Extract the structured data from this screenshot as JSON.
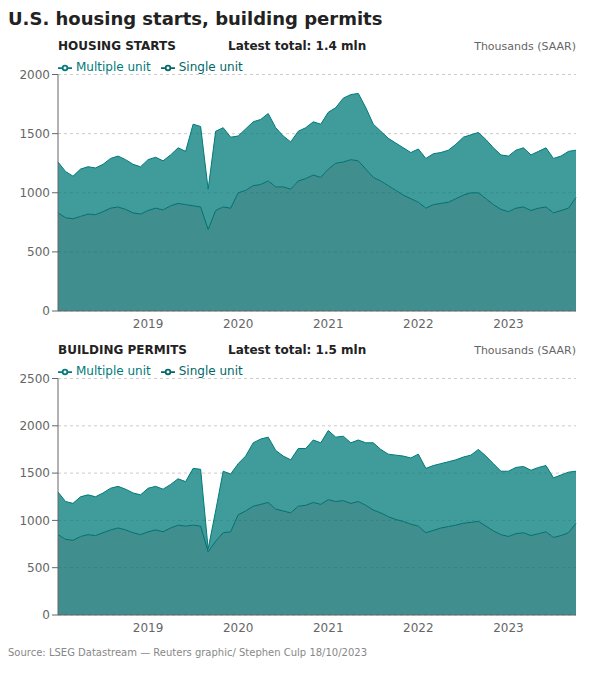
{
  "title": "U.S. housing starts, building permits",
  "annotations": [
    "Source: LSEG Datastream — Reuters graphic/ Stephen Culp  18/10/2023"
  ],
  "chart_data": [
    {
      "type": "area",
      "stacked": true,
      "title": "HOUSING STARTS",
      "subtitle": "Latest total: 1.4 mln",
      "ylabel": "Thousands (SAAR)",
      "grid": true,
      "legend": "upper left",
      "ylim": [
        0,
        2000
      ],
      "yticks": [
        0,
        500,
        1000,
        1500,
        2000
      ],
      "categories": [
        null,
        null,
        null,
        null,
        null,
        null,
        null,
        null,
        null,
        null,
        null,
        null,
        "2019",
        null,
        null,
        null,
        null,
        null,
        null,
        null,
        null,
        null,
        null,
        null,
        "2020",
        null,
        null,
        null,
        null,
        null,
        null,
        null,
        null,
        null,
        null,
        null,
        "2021",
        null,
        null,
        null,
        null,
        null,
        null,
        null,
        null,
        null,
        null,
        null,
        "2022",
        null,
        null,
        null,
        null,
        null,
        null,
        null,
        null,
        null,
        null,
        null,
        "2023",
        null,
        null,
        null,
        null,
        null,
        null,
        null,
        null,
        null
      ],
      "series": [
        {
          "name": "Single unit",
          "color": "#006868",
          "values": [
            830,
            790,
            780,
            800,
            820,
            815,
            840,
            870,
            880,
            860,
            830,
            820,
            850,
            870,
            855,
            890,
            910,
            900,
            890,
            880,
            690,
            850,
            880,
            870,
            1000,
            1020,
            1060,
            1070,
            1100,
            1050,
            1050,
            1030,
            1100,
            1120,
            1150,
            1130,
            1200,
            1250,
            1260,
            1280,
            1270,
            1200,
            1130,
            1100,
            1060,
            1020,
            980,
            950,
            920,
            870,
            900,
            910,
            920,
            950,
            980,
            1000,
            1000,
            950,
            900,
            860,
            840,
            870,
            880,
            850,
            870,
            880,
            830,
            850,
            870,
            960
          ]
        },
        {
          "name": "Multiple unit",
          "color": "#007a7a",
          "values": [
            430,
            390,
            360,
            400,
            400,
            395,
            400,
            420,
            430,
            420,
            410,
            400,
            430,
            430,
            415,
            430,
            470,
            450,
            690,
            680,
            340,
            670,
            670,
            600,
            480,
            520,
            540,
            550,
            570,
            500,
            430,
            400,
            420,
            430,
            450,
            450,
            480,
            470,
            540,
            550,
            570,
            520,
            450,
            420,
            400,
            400,
            400,
            390,
            450,
            420,
            430,
            430,
            440,
            460,
            490,
            490,
            510,
            500,
            480,
            460,
            470,
            490,
            500,
            470,
            480,
            500,
            460,
            460,
            480,
            400
          ]
        }
      ]
    },
    {
      "type": "area",
      "stacked": true,
      "title": "BUILDING PERMITS",
      "subtitle": "Latest total: 1.5 mln",
      "ylabel": "Thousands (SAAR)",
      "grid": true,
      "legend": "upper left",
      "ylim": [
        0,
        2500
      ],
      "yticks": [
        0,
        500,
        1000,
        1500,
        2000,
        2500
      ],
      "categories": [
        null,
        null,
        null,
        null,
        null,
        null,
        null,
        null,
        null,
        null,
        null,
        null,
        "2019",
        null,
        null,
        null,
        null,
        null,
        null,
        null,
        null,
        null,
        null,
        null,
        "2020",
        null,
        null,
        null,
        null,
        null,
        null,
        null,
        null,
        null,
        null,
        null,
        "2021",
        null,
        null,
        null,
        null,
        null,
        null,
        null,
        null,
        null,
        null,
        null,
        "2022",
        null,
        null,
        null,
        null,
        null,
        null,
        null,
        null,
        null,
        null,
        null,
        "2023",
        null,
        null,
        null,
        null,
        null,
        null,
        null,
        null,
        null
      ],
      "series": [
        {
          "name": "Single unit",
          "color": "#006868",
          "values": [
            850,
            800,
            790,
            830,
            850,
            840,
            870,
            900,
            920,
            900,
            870,
            850,
            880,
            900,
            880,
            920,
            950,
            940,
            950,
            940,
            670,
            780,
            870,
            880,
            1060,
            1100,
            1150,
            1170,
            1190,
            1120,
            1100,
            1080,
            1150,
            1160,
            1190,
            1170,
            1220,
            1200,
            1210,
            1180,
            1200,
            1160,
            1110,
            1080,
            1040,
            1010,
            990,
            960,
            940,
            870,
            895,
            920,
            935,
            950,
            970,
            980,
            990,
            940,
            890,
            850,
            830,
            860,
            870,
            840,
            860,
            880,
            820,
            840,
            870,
            970
          ]
        },
        {
          "name": "Multiple unit",
          "color": "#007a7a",
          "values": [
            450,
            400,
            390,
            420,
            420,
            410,
            420,
            440,
            440,
            430,
            420,
            420,
            460,
            460,
            450,
            460,
            490,
            470,
            600,
            600,
            30,
            320,
            650,
            610,
            540,
            580,
            670,
            690,
            690,
            620,
            580,
            560,
            610,
            600,
            660,
            650,
            730,
            680,
            680,
            640,
            650,
            660,
            710,
            670,
            660,
            680,
            690,
            700,
            760,
            680,
            685,
            680,
            685,
            690,
            700,
            710,
            760,
            740,
            710,
            670,
            690,
            700,
            700,
            690,
            700,
            700,
            630,
            640,
            640,
            550
          ]
        }
      ]
    }
  ]
}
